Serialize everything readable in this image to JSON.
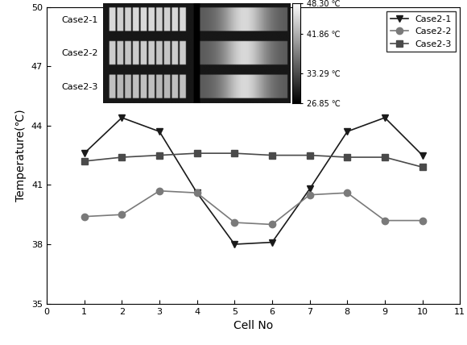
{
  "chart_data": {
    "type": "line",
    "x_label": "Cell No",
    "y_label": "Temperature(℃)",
    "x": [
      1,
      2,
      3,
      4,
      5,
      6,
      7,
      8,
      9,
      10
    ],
    "series": [
      {
        "name": "Case2-1",
        "color": "#1a1a1a",
        "marker": "v",
        "line_style": "solid",
        "values": [
          42.6,
          44.4,
          43.7,
          40.6,
          38.0,
          38.1,
          40.8,
          43.7,
          44.4,
          42.5
        ]
      },
      {
        "name": "Case2-2",
        "color": "#7a7a7a",
        "marker": "o",
        "line_style": "solid",
        "values": [
          39.4,
          39.5,
          40.7,
          40.6,
          39.1,
          39.0,
          40.5,
          40.6,
          39.2,
          39.2
        ]
      },
      {
        "name": "Case2-3",
        "color": "#4a4a4a",
        "marker": "s",
        "line_style": "solid",
        "values": [
          42.2,
          42.4,
          42.5,
          42.6,
          42.6,
          42.5,
          42.5,
          42.4,
          42.4,
          41.9
        ]
      }
    ],
    "xlim": [
      0,
      11
    ],
    "xticks": [
      0,
      1,
      2,
      3,
      4,
      5,
      6,
      7,
      8,
      9,
      10,
      11
    ],
    "ylim": [
      35,
      50
    ],
    "yticks": [
      35,
      38,
      41,
      44,
      47,
      50
    ],
    "legend": "upper right",
    "grid": false,
    "inset_labels": [
      "Case2-1",
      "Case2-2",
      "Case2-3"
    ],
    "colorbar": {
      "range": [
        26.85,
        48.3
      ],
      "ticks": [
        {
          "value": 48.3,
          "label": "48.30 ℃"
        },
        {
          "value": 41.86,
          "label": "41.86 ℃"
        },
        {
          "value": 33.29,
          "label": "33.29 ℃"
        },
        {
          "value": 26.85,
          "label": "26.85 ℃"
        }
      ]
    }
  }
}
